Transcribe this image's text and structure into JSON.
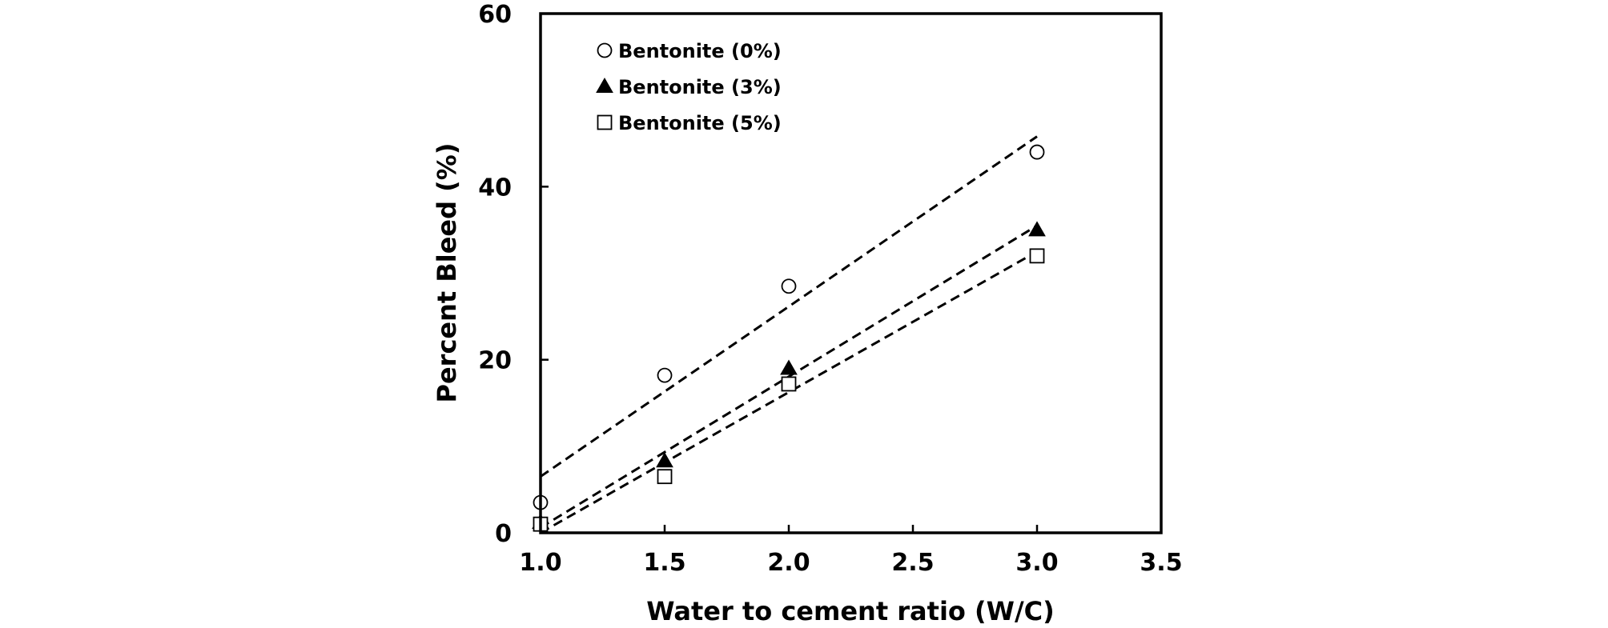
{
  "chart_data": {
    "type": "scatter",
    "title": "",
    "xlabel": "Water to cement ratio (W/C)",
    "ylabel": "Percent Bleed (%)",
    "xlim": [
      1.0,
      3.5
    ],
    "ylim": [
      0,
      60
    ],
    "x_ticks": [
      1.0,
      1.5,
      2.0,
      2.5,
      3.0,
      3.5
    ],
    "x_tick_labels": [
      "1.0",
      "1.5",
      "2.0",
      "2.5",
      "3.0",
      "3.5"
    ],
    "y_ticks": [
      0,
      20,
      40,
      60
    ],
    "y_tick_labels": [
      "0",
      "20",
      "40",
      "60"
    ],
    "grid": false,
    "legend_position": "top-left",
    "series": [
      {
        "name": "Bentonite (0%)",
        "marker": "open-circle",
        "x": [
          1.0,
          1.5,
          2.0,
          3.0
        ],
        "y": [
          3.5,
          18.2,
          28.5,
          44.0
        ],
        "trendline": {
          "style": "dashed",
          "x": [
            1.0,
            3.0
          ],
          "y": [
            6.5,
            45.8
          ]
        }
      },
      {
        "name": "Bentonite (3%)",
        "marker": "filled-triangle",
        "x": [
          1.0,
          1.5,
          2.0,
          3.0
        ],
        "y": [
          1.2,
          8.3,
          19.0,
          35.0
        ],
        "trendline": {
          "style": "dashed",
          "x": [
            1.0,
            3.0
          ],
          "y": [
            0.6,
            35.5
          ]
        }
      },
      {
        "name": "Bentonite (5%)",
        "marker": "open-square",
        "x": [
          1.0,
          1.5,
          2.0,
          3.0
        ],
        "y": [
          1.0,
          6.5,
          17.2,
          32.0
        ],
        "trendline": {
          "style": "dashed",
          "x": [
            1.0,
            3.0
          ],
          "y": [
            0.0,
            32.5
          ]
        }
      }
    ]
  }
}
